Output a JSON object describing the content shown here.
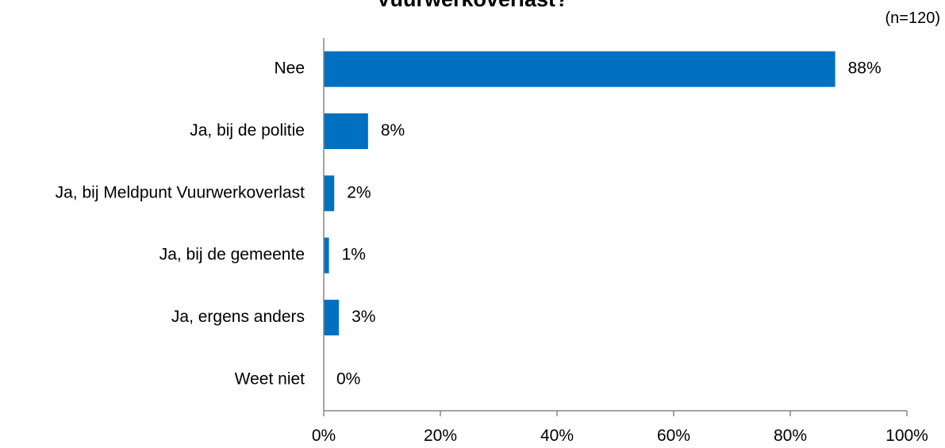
{
  "chart_data": {
    "type": "bar",
    "orientation": "horizontal",
    "title": "Vuurwerkoverlast?",
    "note": "(n=120)",
    "categories": [
      "Nee",
      "Ja, bij de politie",
      "Ja, bij Meldpunt Vuurwerkoverlast",
      "Ja, bij de gemeente",
      "Ja, ergens anders",
      "Weet niet"
    ],
    "values": [
      88,
      8,
      2,
      1,
      3,
      0
    ],
    "bar_lengths": [
      87.7,
      7.6,
      1.8,
      0.9,
      2.6,
      0
    ],
    "value_labels": [
      "88%",
      "8%",
      "2%",
      "1%",
      "3%",
      "0%"
    ],
    "xlim": [
      0,
      100
    ],
    "xticks": [
      "0%",
      "20%",
      "40%",
      "60%",
      "80%",
      "100%"
    ],
    "bar_color": "#0070C0",
    "axis_color": "#868686",
    "grid": false,
    "legend": "none"
  }
}
